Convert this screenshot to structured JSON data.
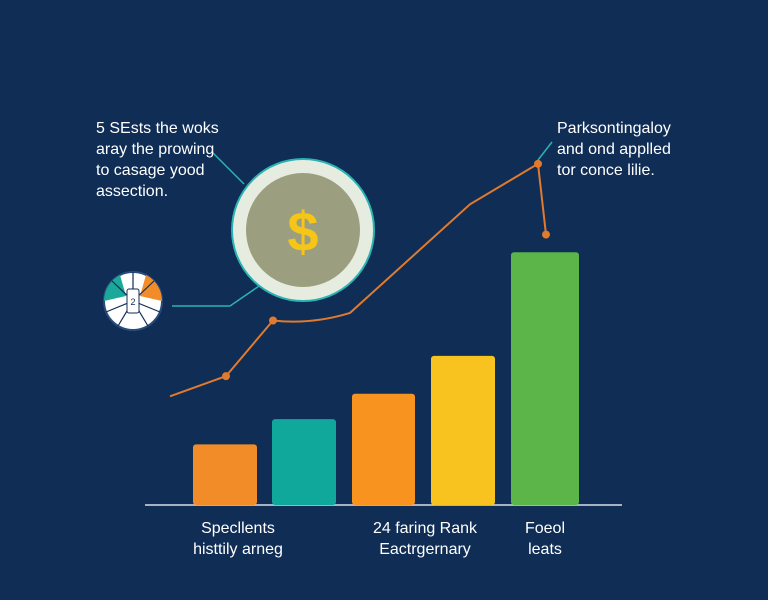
{
  "annotations": {
    "top_left": "5 SEsts the woks\naray the prowing\nto casage yood\nassection.",
    "top_right": "Parksontingaloy\nand ond applled\ntor conce lilie."
  },
  "coin": {
    "symbol": "$",
    "icon": "dollar-coin-icon",
    "color": "#f5c518"
  },
  "gauge": {
    "icon": "gauge-icon",
    "label": "2"
  },
  "chart_data": {
    "type": "bar",
    "categories": [
      "",
      "",
      "",
      "",
      ""
    ],
    "values": [
      24,
      34,
      44,
      59,
      100
    ],
    "colors": [
      "#f28c28",
      "#10a89a",
      "#f7931e",
      "#f9c31f",
      "#5bb548"
    ],
    "ylim": [
      0,
      110
    ],
    "x_labels": [
      "Specllents\nhisttily arneg",
      "24 faring Rank\nEactrgernary",
      "Foeol\nleats"
    ],
    "trend_line": {
      "color": "#e07a2e",
      "values": [
        43,
        51,
        73,
        76,
        119,
        135,
        107
      ]
    },
    "grid": false,
    "legend": "none"
  }
}
